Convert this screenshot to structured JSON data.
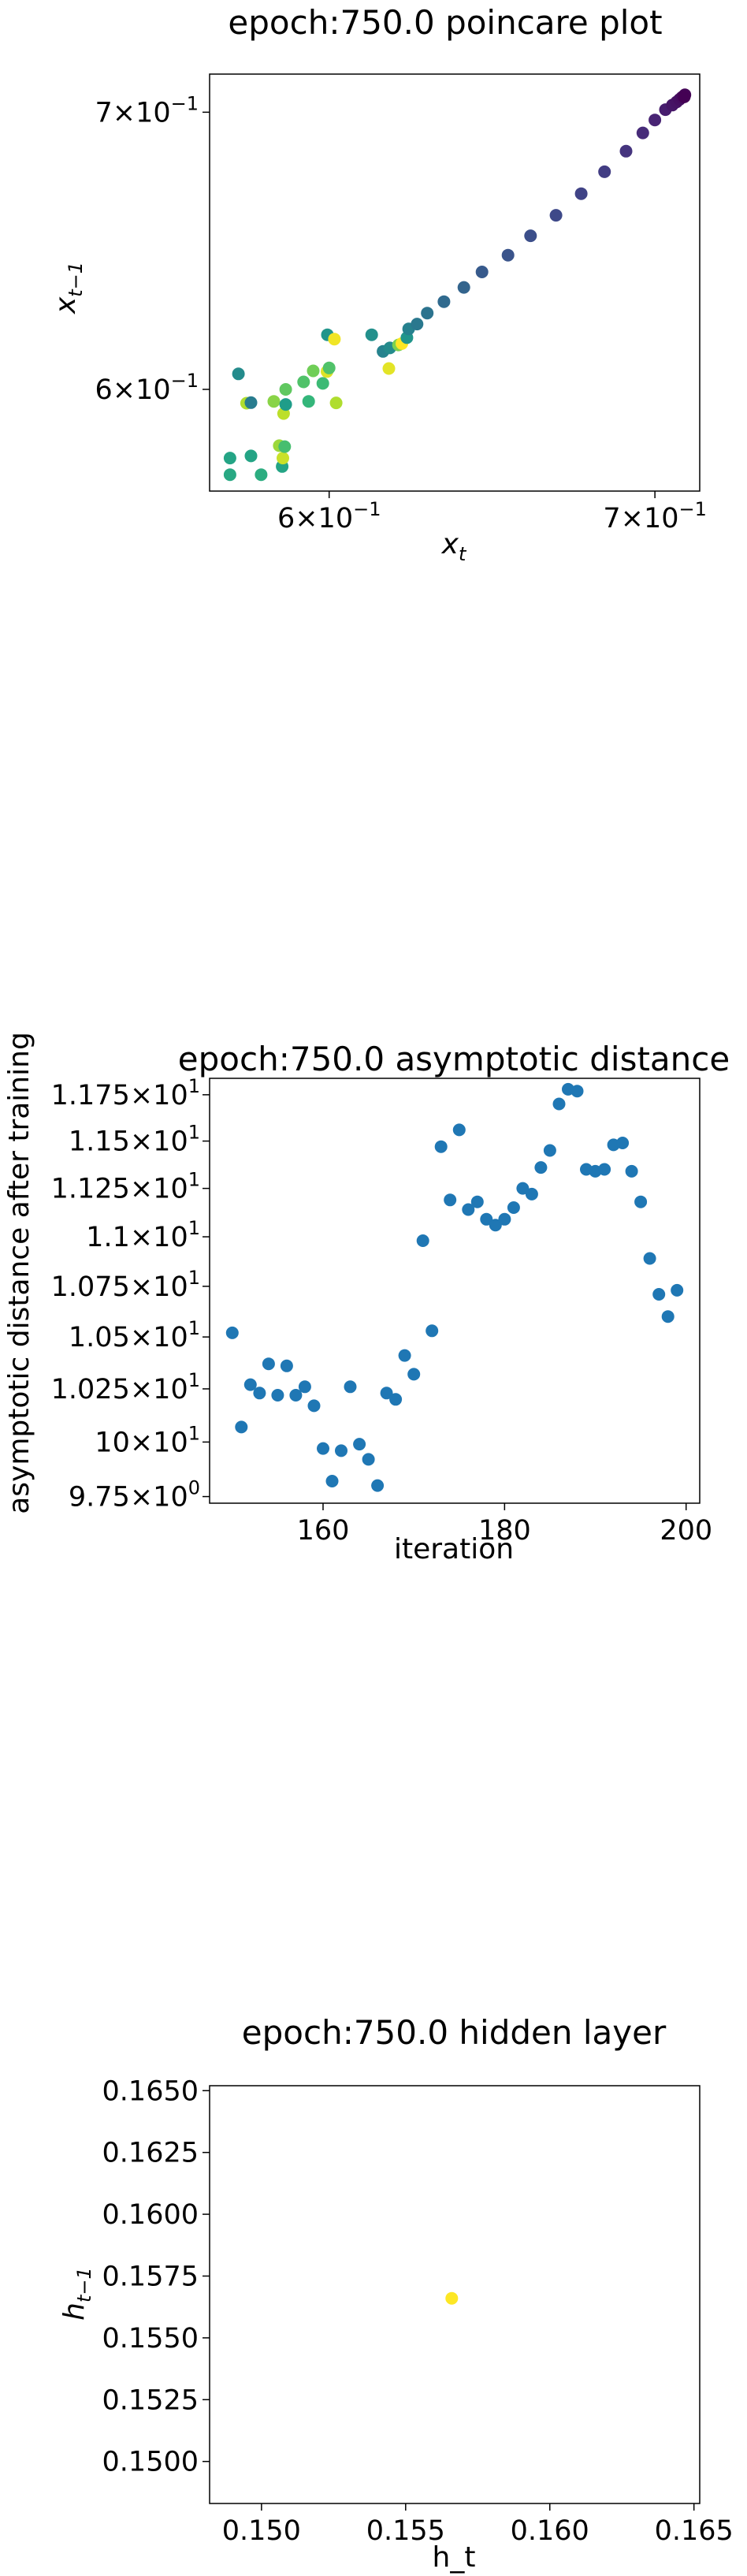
{
  "charts": [
    {
      "title": "epoch:750.0 poincare plot",
      "xlabel": "x",
      "xlabel_sub": "t",
      "ylabel": "x",
      "ylabel_sub": "t−1",
      "xticks": [
        {
          "v": 0.6,
          "mant": "6",
          "exp": "−1"
        },
        {
          "v": 0.7,
          "mant": "7",
          "exp": "−1"
        }
      ],
      "yticks": [
        {
          "v": 0.6,
          "mant": "6",
          "exp": "−1"
        },
        {
          "v": 0.7,
          "mant": "7",
          "exp": "−1"
        }
      ]
    },
    {
      "title": "epoch:750.0 asymptotic distance",
      "xlabel": "iteration",
      "ylabel": "asymptotic distance after training",
      "xticks": [
        "160",
        "180",
        "200"
      ],
      "yticks": [
        {
          "v": 9.75,
          "mant": "9.75",
          "exp": "0"
        },
        {
          "v": 10.0,
          "mant": "10",
          "exp": "1"
        },
        {
          "v": 10.25,
          "mant": "1.025",
          "exp": "1"
        },
        {
          "v": 10.5,
          "mant": "1.05",
          "exp": "1"
        },
        {
          "v": 10.75,
          "mant": "1.075",
          "exp": "1"
        },
        {
          "v": 11.0,
          "mant": "1.1",
          "exp": "1"
        },
        {
          "v": 11.25,
          "mant": "1.125",
          "exp": "1"
        },
        {
          "v": 11.5,
          "mant": "1.15",
          "exp": "1"
        },
        {
          "v": 11.75,
          "mant": "1.175",
          "exp": "1"
        }
      ]
    },
    {
      "title": "epoch:750.0 hidden layer",
      "xlabel": "h_t",
      "ylabel": "h",
      "ylabel_sub": "t−1",
      "xticks": [
        "0.150",
        "0.155",
        "0.160",
        "0.165"
      ],
      "yticks": [
        "0.1500",
        "0.1525",
        "0.1550",
        "0.1575",
        "0.1600",
        "0.1625",
        "0.1650"
      ]
    }
  ],
  "chart_data": [
    {
      "type": "scatter",
      "title": "epoch:750.0 poincare plot",
      "xscale": "log",
      "yscale": "log",
      "xlim": [
        0.567,
        0.715
      ],
      "ylim": [
        0.567,
        0.715
      ],
      "colormap": "viridis",
      "points": [
        {
          "x": 0.5725,
          "y": 0.5775,
          "c": 0.58
        },
        {
          "x": 0.5725,
          "y": 0.5722,
          "c": 0.6
        },
        {
          "x": 0.5748,
          "y": 0.6052,
          "c": 0.48
        },
        {
          "x": 0.577,
          "y": 0.5954,
          "c": 0.88
        },
        {
          "x": 0.5782,
          "y": 0.5956,
          "c": 0.42
        },
        {
          "x": 0.5782,
          "y": 0.5782,
          "c": 0.58
        },
        {
          "x": 0.581,
          "y": 0.5722,
          "c": 0.62
        },
        {
          "x": 0.5845,
          "y": 0.596,
          "c": 0.82
        },
        {
          "x": 0.586,
          "y": 0.5815,
          "c": 0.85
        },
        {
          "x": 0.5868,
          "y": 0.5748,
          "c": 0.58
        },
        {
          "x": 0.587,
          "y": 0.5775,
          "c": 0.92
        },
        {
          "x": 0.5872,
          "y": 0.592,
          "c": 0.9
        },
        {
          "x": 0.5875,
          "y": 0.5812,
          "c": 0.7
        },
        {
          "x": 0.5878,
          "y": 0.595,
          "c": 0.55
        },
        {
          "x": 0.5878,
          "y": 0.6,
          "c": 0.75
        },
        {
          "x": 0.5928,
          "y": 0.6025,
          "c": 0.72
        },
        {
          "x": 0.5942,
          "y": 0.596,
          "c": 0.66
        },
        {
          "x": 0.5955,
          "y": 0.6062,
          "c": 0.78
        },
        {
          "x": 0.5982,
          "y": 0.602,
          "c": 0.68
        },
        {
          "x": 0.5994,
          "y": 0.606,
          "c": 0.95
        },
        {
          "x": 0.6,
          "y": 0.6072,
          "c": 0.72
        },
        {
          "x": 0.5995,
          "y": 0.6185,
          "c": 0.52
        },
        {
          "x": 0.6015,
          "y": 0.617,
          "c": 0.98
        },
        {
          "x": 0.602,
          "y": 0.5955,
          "c": 0.88
        },
        {
          "x": 0.6122,
          "y": 0.6185,
          "c": 0.5
        },
        {
          "x": 0.6155,
          "y": 0.6128,
          "c": 0.45
        },
        {
          "x": 0.6172,
          "y": 0.607,
          "c": 0.96
        },
        {
          "x": 0.6175,
          "y": 0.614,
          "c": 0.48
        },
        {
          "x": 0.62,
          "y": 0.615,
          "c": 0.8
        },
        {
          "x": 0.621,
          "y": 0.6155,
          "c": 1.0
        },
        {
          "x": 0.6225,
          "y": 0.6175,
          "c": 0.52
        },
        {
          "x": 0.623,
          "y": 0.6205,
          "c": 0.44
        },
        {
          "x": 0.6255,
          "y": 0.6222,
          "c": 0.4
        },
        {
          "x": 0.6285,
          "y": 0.626,
          "c": 0.38
        },
        {
          "x": 0.6335,
          "y": 0.63,
          "c": 0.34
        },
        {
          "x": 0.6395,
          "y": 0.635,
          "c": 0.32
        },
        {
          "x": 0.645,
          "y": 0.6405,
          "c": 0.28
        },
        {
          "x": 0.653,
          "y": 0.6465,
          "c": 0.26
        },
        {
          "x": 0.66,
          "y": 0.6535,
          "c": 0.24
        },
        {
          "x": 0.668,
          "y": 0.661,
          "c": 0.22
        },
        {
          "x": 0.676,
          "y": 0.669,
          "c": 0.2
        },
        {
          "x": 0.6835,
          "y": 0.6772,
          "c": 0.18
        },
        {
          "x": 0.6905,
          "y": 0.685,
          "c": 0.15
        },
        {
          "x": 0.696,
          "y": 0.692,
          "c": 0.12
        },
        {
          "x": 0.7,
          "y": 0.697,
          "c": 0.1
        },
        {
          "x": 0.7035,
          "y": 0.701,
          "c": 0.08
        },
        {
          "x": 0.7058,
          "y": 0.7028,
          "c": 0.06
        },
        {
          "x": 0.7072,
          "y": 0.704,
          "c": 0.05
        },
        {
          "x": 0.7082,
          "y": 0.705,
          "c": 0.04
        },
        {
          "x": 0.709,
          "y": 0.7058,
          "c": 0.03
        },
        {
          "x": 0.7095,
          "y": 0.7062,
          "c": 0.02
        },
        {
          "x": 0.71,
          "y": 0.7068,
          "c": 0.01
        },
        {
          "x": 0.7098,
          "y": 0.706,
          "c": 0.0
        }
      ]
    },
    {
      "type": "scatter",
      "title": "epoch:750.0 asymptotic distance",
      "xlabel": "iteration",
      "ylabel": "asymptotic distance after training",
      "xlim": [
        147.5,
        201.5
      ],
      "ylim": [
        9.72,
        11.84
      ],
      "yscale": "log",
      "color": "#1f77b4",
      "points": [
        [
          150,
          10.52
        ],
        [
          151,
          10.07
        ],
        [
          152,
          10.27
        ],
        [
          153,
          10.23
        ],
        [
          154,
          10.37
        ],
        [
          155,
          10.22
        ],
        [
          156,
          10.36
        ],
        [
          157,
          10.22
        ],
        [
          158,
          10.26
        ],
        [
          159,
          10.17
        ],
        [
          160,
          9.97
        ],
        [
          161,
          9.82
        ],
        [
          162,
          9.96
        ],
        [
          163,
          10.26
        ],
        [
          164,
          9.99
        ],
        [
          165,
          9.92
        ],
        [
          166,
          9.8
        ],
        [
          167,
          10.23
        ],
        [
          168,
          10.2
        ],
        [
          169,
          10.41
        ],
        [
          170,
          10.32
        ],
        [
          171,
          10.98
        ],
        [
          172,
          10.53
        ],
        [
          173,
          11.47
        ],
        [
          174,
          11.19
        ],
        [
          175,
          11.56
        ],
        [
          176,
          11.14
        ],
        [
          177,
          11.18
        ],
        [
          178,
          11.09
        ],
        [
          179,
          11.06
        ],
        [
          180,
          11.09
        ],
        [
          181,
          11.15
        ],
        [
          182,
          11.25
        ],
        [
          183,
          11.22
        ],
        [
          184,
          11.36
        ],
        [
          185,
          11.45
        ],
        [
          186,
          11.7
        ],
        [
          187,
          11.78
        ],
        [
          188,
          11.77
        ],
        [
          189,
          11.35
        ],
        [
          190,
          11.34
        ],
        [
          191,
          11.35
        ],
        [
          192,
          11.48
        ],
        [
          193,
          11.49
        ],
        [
          194,
          11.34
        ],
        [
          195,
          11.18
        ],
        [
          196,
          10.89
        ],
        [
          197,
          10.71
        ],
        [
          198,
          10.6
        ],
        [
          199,
          10.73
        ]
      ]
    },
    {
      "type": "scatter",
      "title": "epoch:750.0 hidden layer",
      "xlabel": "h_t",
      "xlim": [
        0.1482,
        0.1652
      ],
      "ylim": [
        0.1483,
        0.1652
      ],
      "color": "#fde725",
      "points": [
        [
          0.1566,
          0.1566
        ]
      ]
    }
  ]
}
